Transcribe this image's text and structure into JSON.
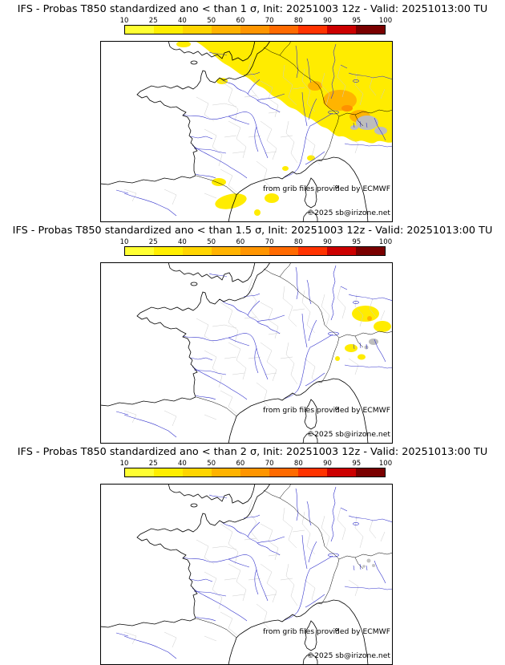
{
  "panels": [
    {
      "title": "IFS - Probas T850  standardized ano < than 1 σ, Init: 20251003 12z - Valid: 20251013:00 TU",
      "credit": "from grib files provided by ECMWF",
      "copyright": "©2025 sb@irizone.net"
    },
    {
      "title": "IFS - Probas T850  standardized ano < than 1.5 σ, Init: 20251003 12z - Valid: 20251013:00 TU",
      "credit": "from grib files provided by ECMWF",
      "copyright": "©2025 sb@irizone.net"
    },
    {
      "title": "IFS - Probas T850  standardized ano < than 2 σ, Init: 20251003 12z - Valid: 20251013:00 TU",
      "credit": "from grib files provided by ECMWF",
      "copyright": "©2025 sb@irizone.net"
    }
  ],
  "colorbar": {
    "ticks": [
      "10",
      "25",
      "40",
      "50",
      "60",
      "70",
      "80",
      "90",
      "95",
      "100"
    ],
    "colors": [
      "#ffff33",
      "#ffee00",
      "#ffd500",
      "#ffb300",
      "#ff9500",
      "#ff6a00",
      "#ff3300",
      "#cc0000",
      "#7a0000"
    ],
    "border_color": "#000000"
  },
  "map_colors": {
    "coast": "#000000",
    "rivers": "#3333cc",
    "admin_boundaries": "#cccccc",
    "prob_low_yellow": "#ffec00",
    "prob_mid_orange": "#ffb400",
    "prob_high_orange": "#ff9000",
    "terrain_gray": "#bdbdbd",
    "sea": "#ffffff"
  }
}
